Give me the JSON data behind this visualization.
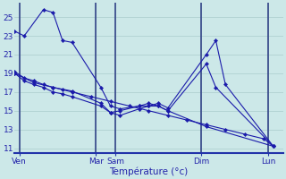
{
  "background_color": "#cce8e8",
  "grid_color": "#aacccc",
  "line_color": "#1a1aaa",
  "marker_color": "#1a1aaa",
  "xlabel": "Température (°c)",
  "ylim": [
    10.5,
    26.5
  ],
  "yticks": [
    11,
    13,
    15,
    17,
    19,
    21,
    23,
    25
  ],
  "xlim": [
    0,
    28
  ],
  "series": [
    {
      "x": [
        0,
        1,
        3,
        4,
        5,
        6,
        9,
        10,
        11,
        13,
        14,
        15,
        16,
        20,
        21,
        22,
        27
      ],
      "y": [
        23.5,
        23.0,
        25.8,
        25.5,
        22.5,
        22.3,
        17.5,
        15.5,
        15.2,
        15.5,
        15.5,
        15.8,
        15.3,
        21.0,
        22.5,
        17.8,
        11.2
      ]
    },
    {
      "x": [
        0,
        1,
        2,
        3,
        4,
        5,
        6,
        9,
        10,
        11,
        13,
        14,
        15,
        16,
        20,
        21,
        27
      ],
      "y": [
        19.2,
        18.5,
        18.2,
        17.8,
        17.5,
        17.3,
        17.1,
        15.8,
        14.8,
        15.0,
        15.5,
        15.8,
        15.5,
        15.0,
        20.0,
        17.5,
        11.2
      ]
    },
    {
      "x": [
        0,
        1,
        2,
        3,
        4,
        5,
        6,
        9,
        10,
        11,
        13,
        14,
        15,
        16,
        20,
        27
      ],
      "y": [
        19.0,
        18.2,
        17.8,
        17.5,
        17.0,
        16.8,
        16.5,
        15.5,
        14.8,
        14.5,
        15.2,
        15.5,
        15.5,
        15.0,
        13.3,
        11.2
      ]
    },
    {
      "x": [
        0,
        2,
        4,
        6,
        8,
        10,
        12,
        14,
        16,
        18,
        20,
        22,
        24,
        26,
        27
      ],
      "y": [
        19.0,
        18.0,
        17.5,
        17.0,
        16.5,
        16.0,
        15.5,
        15.0,
        14.5,
        14.0,
        13.5,
        13.0,
        12.5,
        12.0,
        11.2
      ]
    }
  ],
  "vlines": [
    0.5,
    8.5,
    10.5,
    19.5,
    26.5
  ],
  "day_ticks": [
    0.5,
    8.5,
    10.5,
    19.5,
    26.5
  ],
  "day_labels": [
    "Ven",
    "Mar",
    "Sam",
    "Dim",
    "Lun"
  ]
}
